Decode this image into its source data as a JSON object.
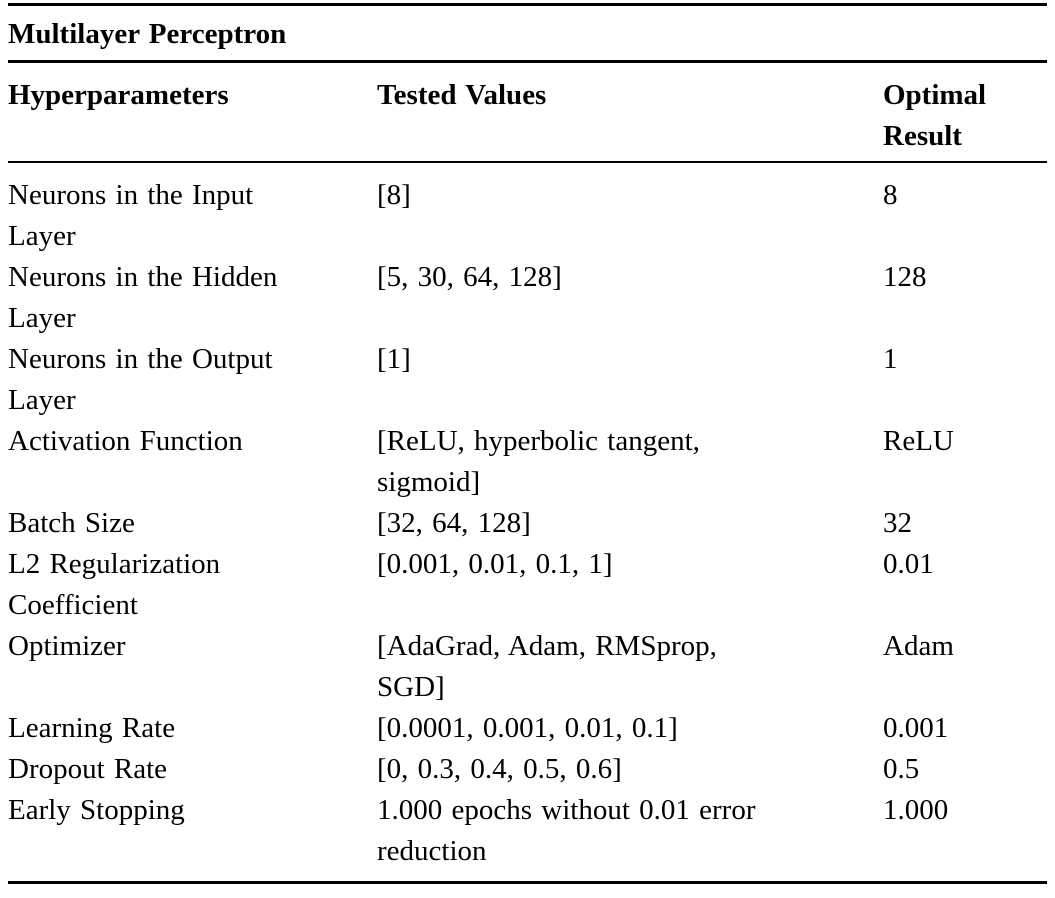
{
  "page": {
    "background_color": "#ffffff",
    "text_color": "#000000",
    "rule_color": "#000000"
  },
  "table": {
    "title": "Multilayer Perceptron",
    "columns": [
      "Hyperparameters",
      "Tested Values",
      "Optimal\nResult"
    ],
    "rows": [
      {
        "hyperparameter": "Neurons in the Input\nLayer",
        "tested_values": "[8]",
        "optimal_result": "8"
      },
      {
        "hyperparameter": "Neurons in the Hidden\nLayer",
        "tested_values": "[5, 30, 64, 128]",
        "optimal_result": "128"
      },
      {
        "hyperparameter": "Neurons in the Output\nLayer",
        "tested_values": "[1]",
        "optimal_result": "1"
      },
      {
        "hyperparameter": "Activation Function",
        "tested_values": "[ReLU, hyperbolic tangent,\nsigmoid]",
        "optimal_result": "ReLU"
      },
      {
        "hyperparameter": "Batch Size",
        "tested_values": "[32, 64, 128]",
        "optimal_result": "32"
      },
      {
        "hyperparameter": "L2 Regularization\nCoefficient",
        "tested_values": "[0.001, 0.01, 0.1, 1]",
        "optimal_result": "0.01"
      },
      {
        "hyperparameter": "Optimizer",
        "tested_values": "[AdaGrad, Adam, RMSprop,\nSGD]",
        "optimal_result": "Adam"
      },
      {
        "hyperparameter": "Learning Rate",
        "tested_values": "[0.0001, 0.001, 0.01, 0.1]",
        "optimal_result": "0.001"
      },
      {
        "hyperparameter": "Dropout Rate",
        "tested_values": "[0, 0.3, 0.4, 0.5, 0.6]",
        "optimal_result": "0.5"
      },
      {
        "hyperparameter": "Early Stopping",
        "tested_values": "1.000 epochs without 0.01 error\nreduction",
        "optimal_result": "1.000"
      }
    ]
  }
}
